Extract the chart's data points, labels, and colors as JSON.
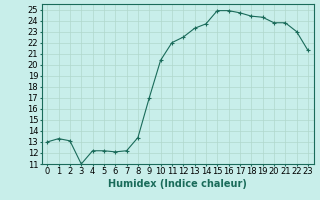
{
  "x": [
    0,
    1,
    2,
    3,
    4,
    5,
    6,
    7,
    8,
    9,
    10,
    11,
    12,
    13,
    14,
    15,
    16,
    17,
    18,
    19,
    20,
    21,
    22,
    23
  ],
  "y": [
    13,
    13.3,
    13.1,
    11,
    12.2,
    12.2,
    12.1,
    12.2,
    13.4,
    17.0,
    20.4,
    22.0,
    22.5,
    23.3,
    23.7,
    24.9,
    24.9,
    24.7,
    24.4,
    24.3,
    23.8,
    23.8,
    23.0,
    21.3
  ],
  "line_color": "#1a6b5a",
  "marker": "+",
  "bg_color": "#c8eeea",
  "grid_color": "#b0d8cc",
  "xlabel": "Humidex (Indice chaleur)",
  "ylabel_ticks": [
    11,
    12,
    13,
    14,
    15,
    16,
    17,
    18,
    19,
    20,
    21,
    22,
    23,
    24,
    25
  ],
  "xlim": [
    -0.5,
    23.5
  ],
  "ylim": [
    11,
    25.5
  ],
  "xlabel_fontsize": 7,
  "tick_fontsize": 6
}
